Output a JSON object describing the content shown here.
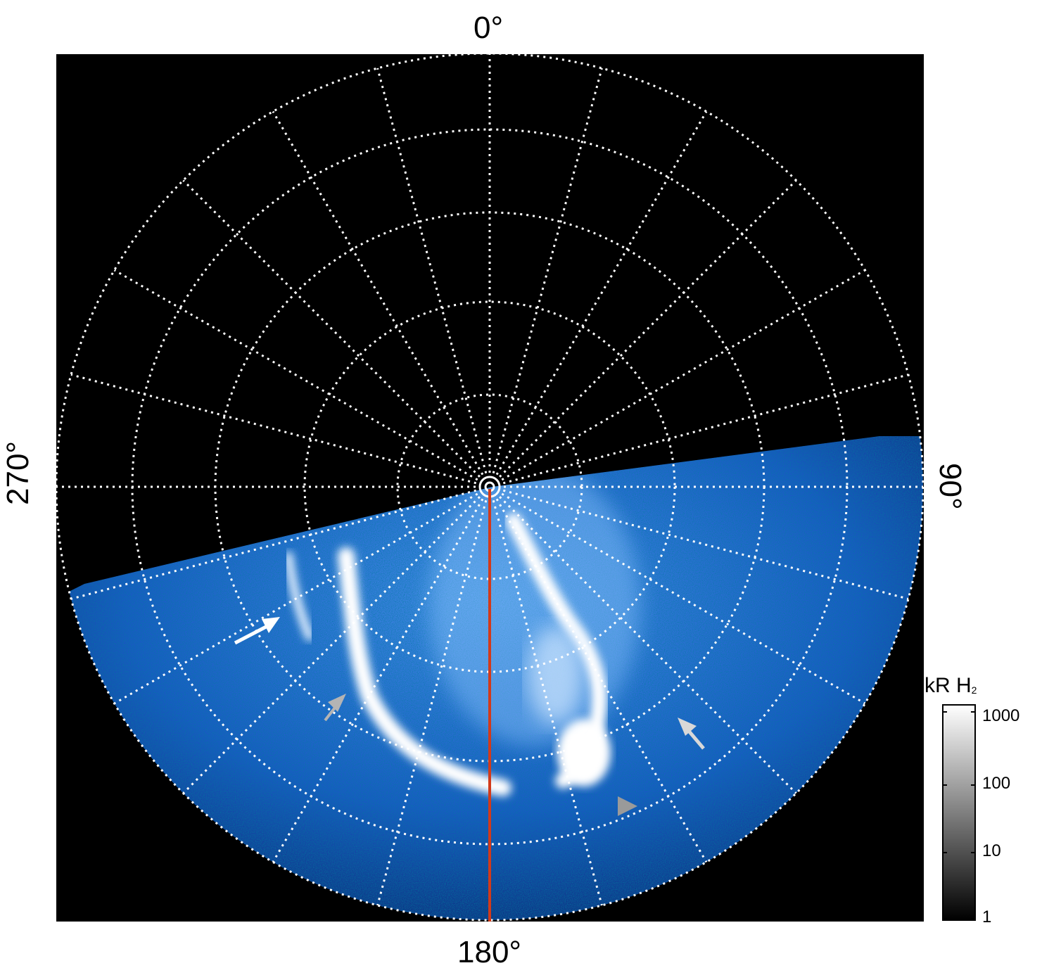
{
  "labels": {
    "top": "0°",
    "right": "90°",
    "bottom": "180°",
    "left": "270°"
  },
  "colorbar": {
    "title": "kR H",
    "title_sub": "2",
    "ticks": [
      "1000",
      "100",
      "10",
      "1"
    ],
    "scale": "log",
    "range": [
      1,
      1000
    ]
  },
  "grid": {
    "rings": 5,
    "meridians": 24,
    "line": "dotted white"
  },
  "colors": {
    "aurora_blue": "#1a66e6",
    "aurora_white": "#ffffff",
    "meridian_line": "#d23a1a",
    "background": "#000000"
  },
  "annotations": [
    "white-arrow-left",
    "grey-triangle-left",
    "white-arrow-right",
    "grey-triangle-right"
  ]
}
